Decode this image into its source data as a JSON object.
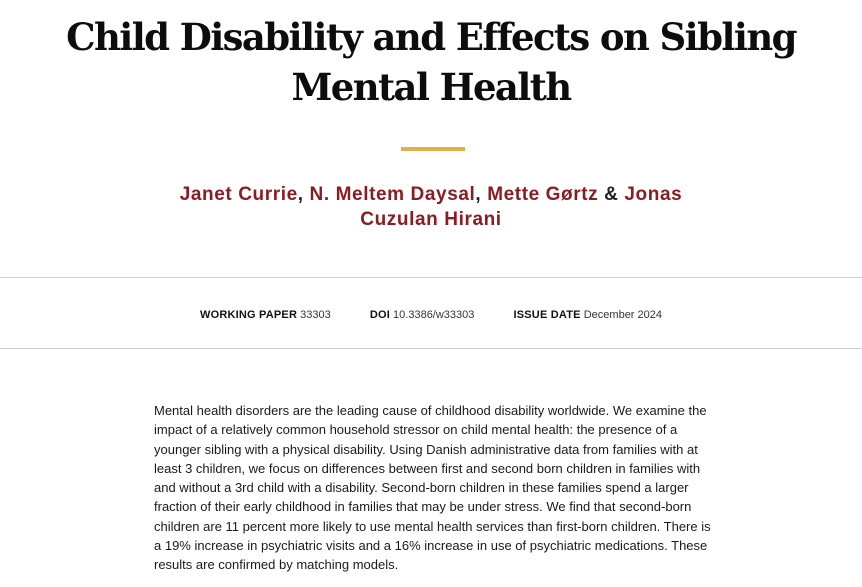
{
  "paper": {
    "title": "Child Disability and Effects on Sibling Mental Health",
    "authors": [
      {
        "name": "Janet Currie"
      },
      {
        "name": "N. Meltem Daysal"
      },
      {
        "name": "Mette Gørtz"
      },
      {
        "name": "Jonas Cuzulan Hirani"
      }
    ],
    "separators": [
      ", ",
      ", ",
      " & "
    ]
  },
  "meta": {
    "working_paper_label": "WORKING PAPER",
    "working_paper_value": "33303",
    "doi_label": "DOI",
    "doi_value": "10.3386/w33303",
    "issue_date_label": "ISSUE DATE",
    "issue_date_value": "December 2024"
  },
  "abstract": "Mental health disorders are the leading cause of childhood disability worldwide. We examine the impact of a relatively common household stressor on child mental health: the presence of a younger sibling with a physical disability. Using Danish administrative data from families with at least 3 children, we focus on differences between first and second born children in families with and without a 3rd child with a disability. Second-born children in these families spend a larger fraction of their early childhood in families that may be under stress. We find that second-born children are 11 percent more likely to use mental health services than first-born children. There is a 19% increase in psychiatric visits and a 16% increase in use of psychiatric medications. These results are confirmed by matching models.",
  "colors": {
    "author_link": "#8a1c22",
    "accent_rule": "#e2b04a",
    "divider": "#cfcfcf"
  }
}
